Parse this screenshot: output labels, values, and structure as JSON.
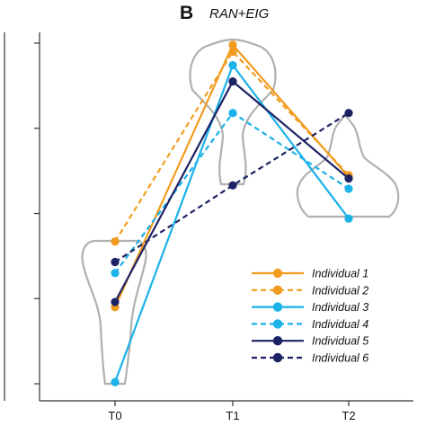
{
  "chart_data": {
    "type": "line",
    "panel_letter": "B",
    "title": "RAN+EIG",
    "xlabel": "",
    "ylabel": "",
    "categories": [
      "T0",
      "T1",
      "T2"
    ],
    "ylim": [
      0,
      4
    ],
    "ytick_values": [
      0,
      1,
      2,
      3,
      4
    ],
    "grid": false,
    "legend_position": "bottom-right",
    "colors": {
      "orange": "#F29C1F",
      "light_blue": "#1AB2E8",
      "navy": "#1C2364",
      "violin": "#B0B0B0",
      "axis": "#333333"
    },
    "series": [
      {
        "name": "Individual 1",
        "color": "#F29C1F",
        "dash": false,
        "values": [
          0.9,
          3.98,
          2.43
        ]
      },
      {
        "name": "Individual 2",
        "color": "#F29C1F",
        "dash": true,
        "values": [
          1.67,
          3.9,
          2.45
        ]
      },
      {
        "name": "Individual 3",
        "color": "#1AB2E8",
        "dash": false,
        "values": [
          0.02,
          3.74,
          1.94
        ]
      },
      {
        "name": "Individual 4",
        "color": "#1AB2E8",
        "dash": true,
        "values": [
          1.3,
          3.18,
          2.29
        ]
      },
      {
        "name": "Individual 5",
        "color": "#1C2364",
        "dash": false,
        "values": [
          0.96,
          3.55,
          2.41
        ]
      },
      {
        "name": "Individual 6",
        "color": "#1C2364",
        "dash": true,
        "values": [
          1.43,
          2.33,
          3.18
        ]
      }
    ]
  }
}
